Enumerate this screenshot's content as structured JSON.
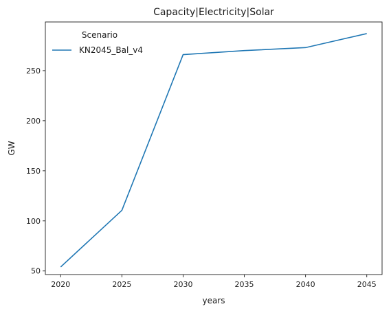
{
  "chart_data": {
    "type": "line",
    "title": "Capacity|Electricity|Solar",
    "xlabel": "years",
    "ylabel": "GW",
    "x": [
      2020,
      2025,
      2030,
      2035,
      2040,
      2045
    ],
    "xlim": [
      2018.75,
      2046.25
    ],
    "ylim": [
      46.4,
      298.6
    ],
    "xticks": [
      2020,
      2025,
      2030,
      2035,
      2040,
      2045
    ],
    "yticks": [
      50,
      100,
      150,
      200,
      250
    ],
    "grid": false,
    "legend": {
      "title": "Scenario",
      "placement": "upper-left"
    },
    "series": [
      {
        "name": "KN2045_Bal_v4",
        "color": "#1f77b4",
        "values": [
          54,
          110.5,
          266,
          270,
          273,
          287
        ]
      }
    ]
  }
}
